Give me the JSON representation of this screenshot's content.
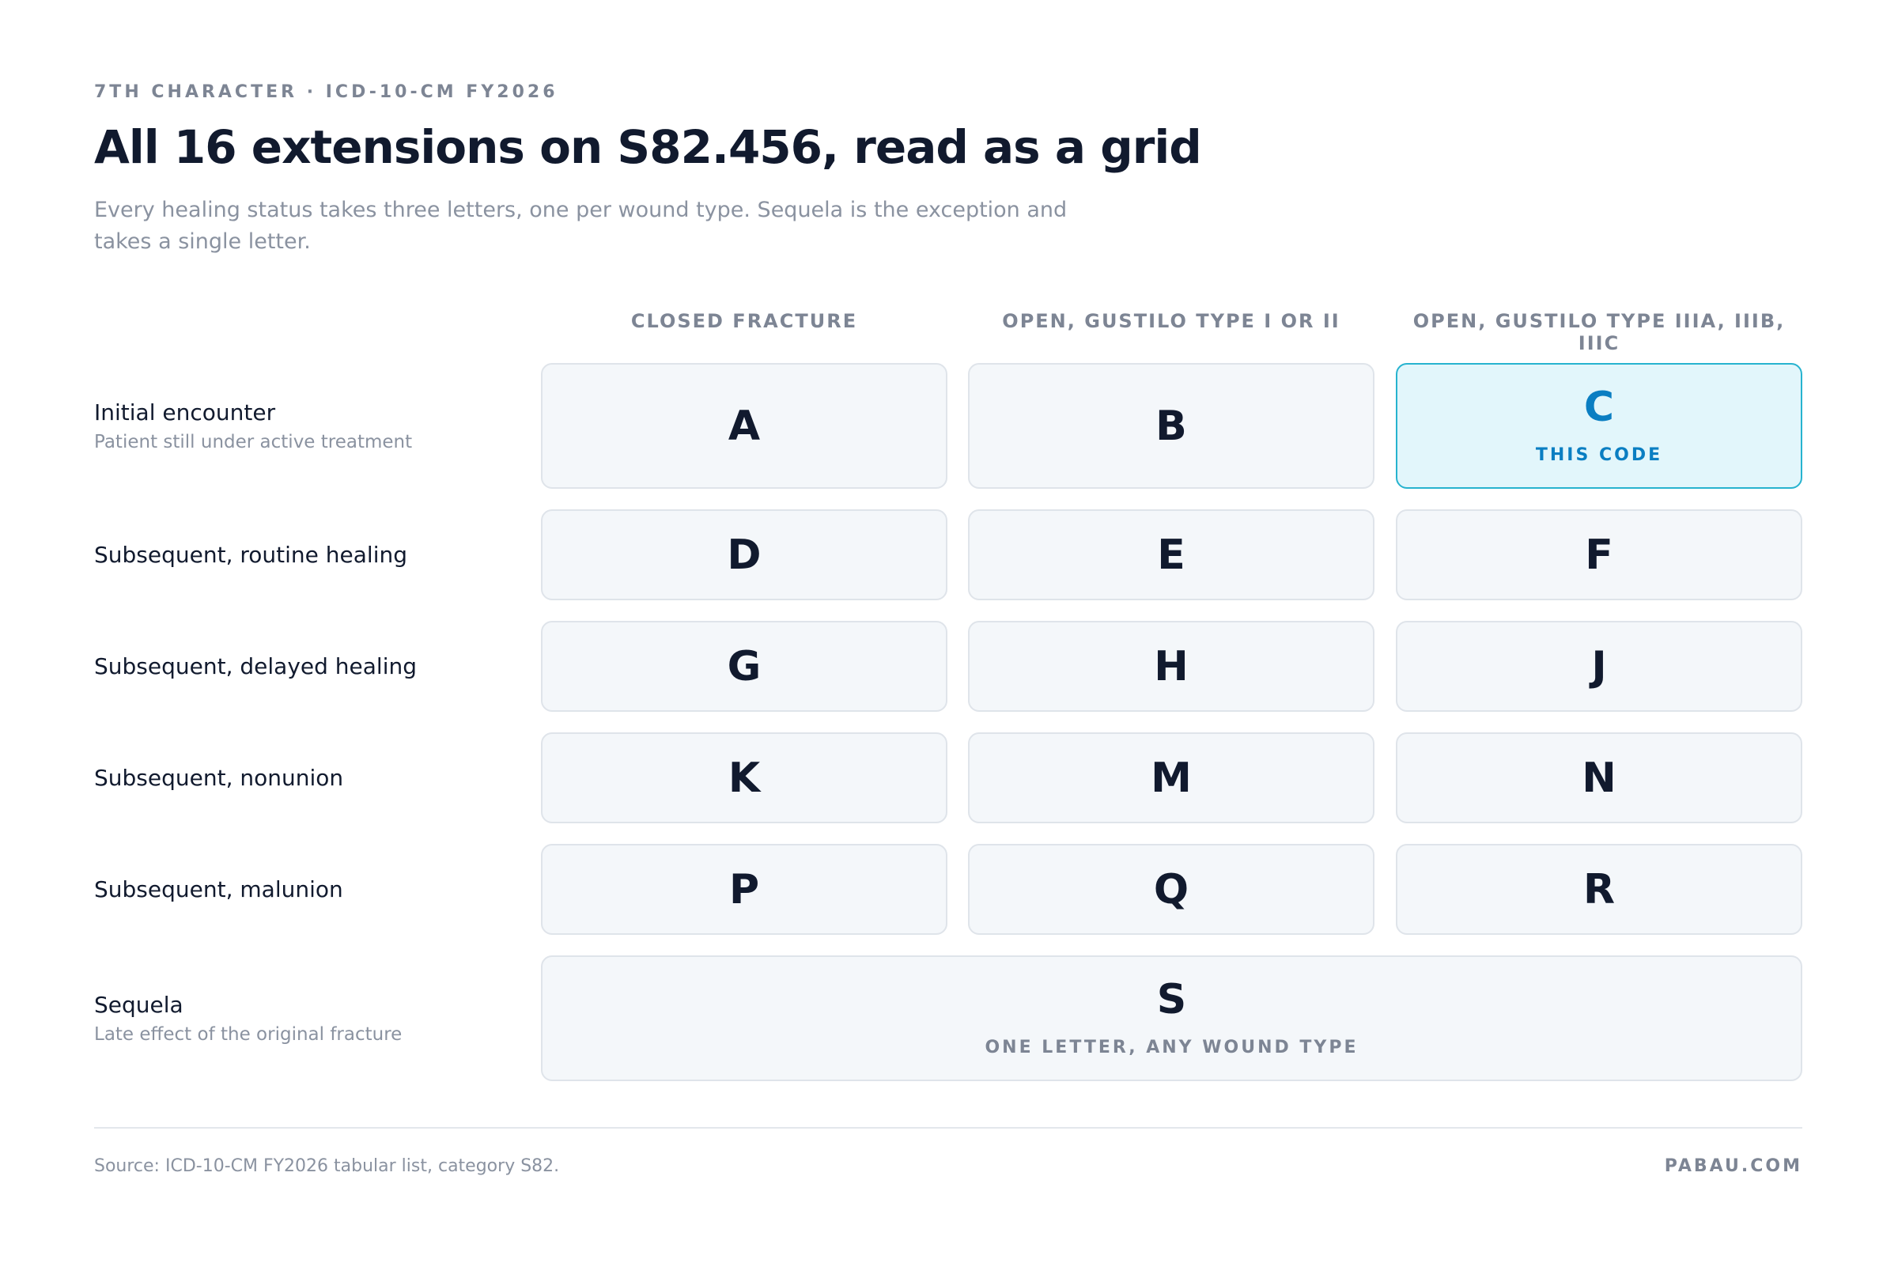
{
  "header": {
    "eyebrow": "7TH CHARACTER · ICD-10-CM FY2026",
    "title": "All 16 extensions on S82.456, read as a grid",
    "subtitle": "Every healing status takes three letters, one per wound type. Sequela is the exception and takes a single letter."
  },
  "columns": [
    "CLOSED FRACTURE",
    "OPEN, GUSTILO TYPE I OR II",
    "OPEN, GUSTILO TYPE IIIA, IIIB, IIIC"
  ],
  "rows": [
    {
      "label": "Initial encounter",
      "note": "Patient still under active treatment",
      "cells": [
        {
          "letter": "A"
        },
        {
          "letter": "B"
        },
        {
          "letter": "C",
          "tag": "THIS CODE"
        }
      ]
    },
    {
      "label": "Subsequent, routine healing",
      "cells": [
        {
          "letter": "D"
        },
        {
          "letter": "E"
        },
        {
          "letter": "F"
        }
      ]
    },
    {
      "label": "Subsequent, delayed healing",
      "cells": [
        {
          "letter": "G"
        },
        {
          "letter": "H"
        },
        {
          "letter": "J"
        }
      ]
    },
    {
      "label": "Subsequent, nonunion",
      "cells": [
        {
          "letter": "K"
        },
        {
          "letter": "M"
        },
        {
          "letter": "N"
        }
      ]
    },
    {
      "label": "Subsequent, malunion",
      "cells": [
        {
          "letter": "P"
        },
        {
          "letter": "Q"
        },
        {
          "letter": "R"
        }
      ]
    },
    {
      "label": "Sequela",
      "note": "Late effect of the original fracture",
      "cells": [
        {
          "letter": "S",
          "tag": "ONE LETTER, ANY WOUND TYPE"
        }
      ]
    }
  ],
  "footer": {
    "source": "Source: ICD-10-CM FY2026 tabular list, category S82.",
    "brand": "PABAU.COM"
  }
}
